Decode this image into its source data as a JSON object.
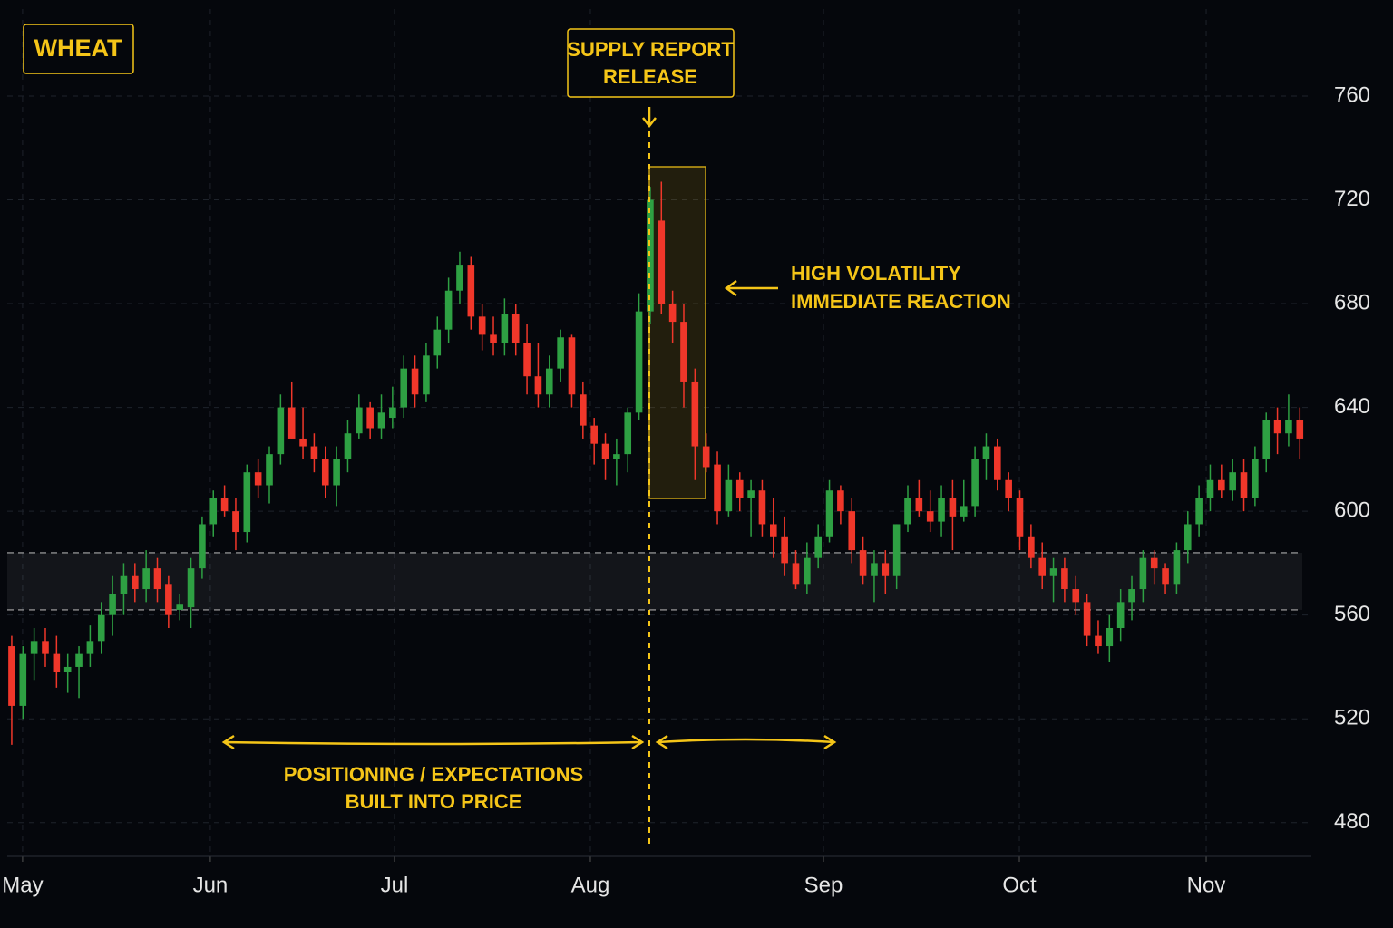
{
  "chart_data": {
    "type": "candlestick",
    "title": "WHEAT",
    "up_color": "#2ea043",
    "down_color": "#f0372a",
    "annotation_color": "#f5c518",
    "grid": true,
    "xlim": [
      -0.4,
      116.03
    ],
    "xticks": [
      {
        "value": 0.97,
        "label": "May"
      },
      {
        "value": 17.73,
        "label": "Jun"
      },
      {
        "value": 34.17,
        "label": "Jul"
      },
      {
        "value": 51.66,
        "label": "Aug"
      },
      {
        "value": 72.47,
        "label": "Sep"
      },
      {
        "value": 89.96,
        "label": "Oct"
      },
      {
        "value": 106.64,
        "label": "Nov"
      }
    ],
    "ylim": [
      467,
      797
    ],
    "yticks": [
      480,
      520,
      560,
      600,
      640,
      680,
      720,
      760
    ],
    "support_zone": [
      562,
      584
    ],
    "annotations": {
      "event": [
        "SUPPLY REPORT",
        "RELEASE"
      ],
      "volatility": [
        "HIGH VOLATILITY",
        "IMMEDIATE REACTION"
      ],
      "positioning": [
        "POSITIONING / EXPECTATIONS",
        "BUILT INTO PRICE"
      ]
    },
    "open": [
      548,
      525,
      545,
      550,
      545,
      538,
      540,
      545,
      550,
      560,
      568,
      575,
      570,
      578,
      572,
      562,
      563,
      578,
      595,
      605,
      600,
      592,
      615,
      610,
      622,
      640,
      628,
      625,
      620,
      610,
      620,
      630,
      640,
      632,
      636,
      640,
      655,
      645,
      660,
      670,
      685,
      695,
      675,
      668,
      665,
      676,
      665,
      652,
      645,
      655,
      667,
      645,
      633,
      626,
      620,
      622,
      638,
      677,
      712,
      680,
      673,
      650,
      625,
      618,
      600,
      612,
      605,
      608,
      595,
      590,
      580,
      572,
      582,
      590,
      608,
      600,
      585,
      575,
      580,
      575,
      595,
      605,
      600,
      596,
      605,
      598,
      602,
      620,
      625,
      612,
      605,
      590,
      582,
      575,
      578,
      570,
      565,
      552,
      548,
      555,
      565,
      570,
      582,
      578,
      572,
      585,
      595,
      605,
      612,
      608,
      615,
      605,
      620,
      635,
      630,
      635
    ],
    "high": [
      552,
      548,
      555,
      555,
      552,
      545,
      548,
      556,
      565,
      575,
      580,
      580,
      585,
      582,
      575,
      568,
      582,
      598,
      608,
      610,
      605,
      618,
      620,
      625,
      645,
      650,
      640,
      630,
      625,
      625,
      635,
      645,
      642,
      645,
      648,
      660,
      660,
      665,
      675,
      690,
      700,
      698,
      680,
      675,
      682,
      680,
      672,
      665,
      660,
      670,
      668,
      650,
      636,
      630,
      628,
      640,
      684,
      725,
      727,
      685,
      680,
      655,
      630,
      623,
      618,
      615,
      612,
      612,
      605,
      598,
      585,
      588,
      595,
      612,
      610,
      605,
      590,
      585,
      585,
      595,
      610,
      612,
      608,
      610,
      612,
      612,
      625,
      630,
      628,
      615,
      608,
      595,
      588,
      582,
      582,
      575,
      568,
      558,
      560,
      570,
      575,
      585,
      585,
      580,
      588,
      600,
      610,
      618,
      618,
      620,
      620,
      625,
      638,
      640,
      645,
      640
    ],
    "low": [
      510,
      520,
      535,
      540,
      532,
      530,
      528,
      540,
      545,
      552,
      560,
      565,
      565,
      565,
      555,
      558,
      555,
      574,
      590,
      598,
      585,
      588,
      605,
      603,
      618,
      628,
      620,
      615,
      605,
      602,
      615,
      628,
      628,
      628,
      632,
      636,
      640,
      642,
      655,
      665,
      680,
      670,
      662,
      660,
      660,
      660,
      645,
      640,
      640,
      650,
      640,
      628,
      618,
      612,
      610,
      615,
      635,
      672,
      676,
      665,
      640,
      612,
      615,
      595,
      598,
      600,
      590,
      590,
      582,
      575,
      570,
      568,
      578,
      588,
      595,
      580,
      572,
      565,
      568,
      570,
      592,
      598,
      592,
      590,
      585,
      596,
      598,
      612,
      608,
      600,
      585,
      578,
      570,
      565,
      565,
      560,
      548,
      545,
      542,
      550,
      558,
      565,
      572,
      568,
      568,
      580,
      590,
      600,
      605,
      604,
      600,
      602,
      615,
      622,
      625,
      620
    ],
    "close": [
      525,
      545,
      550,
      545,
      538,
      540,
      545,
      550,
      560,
      568,
      575,
      570,
      578,
      570,
      560,
      564,
      578,
      595,
      605,
      600,
      592,
      615,
      610,
      622,
      640,
      628,
      625,
      620,
      610,
      620,
      630,
      640,
      632,
      638,
      640,
      655,
      645,
      660,
      670,
      685,
      695,
      675,
      668,
      665,
      676,
      665,
      652,
      645,
      655,
      667,
      645,
      633,
      626,
      620,
      622,
      638,
      677,
      720,
      680,
      673,
      650,
      625,
      617,
      600,
      612,
      605,
      608,
      595,
      590,
      580,
      572,
      582,
      590,
      608,
      600,
      585,
      575,
      580,
      575,
      595,
      605,
      600,
      596,
      605,
      598,
      602,
      620,
      625,
      612,
      605,
      590,
      582,
      575,
      578,
      570,
      565,
      552,
      548,
      555,
      565,
      570,
      582,
      578,
      572,
      585,
      595,
      605,
      612,
      608,
      615,
      605,
      620,
      635,
      630,
      635,
      628
    ]
  }
}
